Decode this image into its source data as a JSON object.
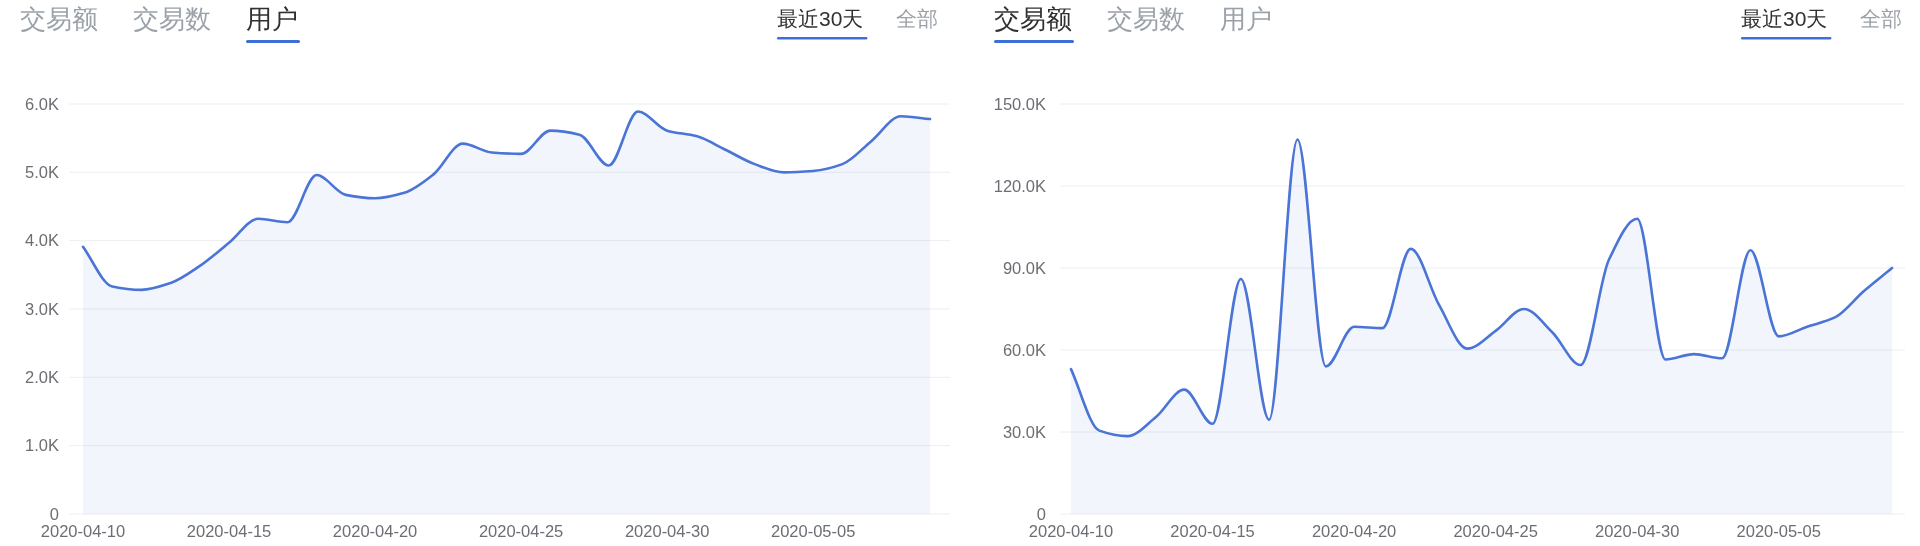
{
  "chart_data": [
    {
      "type": "area",
      "title": "用户",
      "subtitle": "最近30天",
      "annotations": [
        "交易额",
        "交易数",
        "全部"
      ],
      "categories": [
        "2020-04-10",
        null,
        null,
        null,
        null,
        "2020-04-15",
        null,
        null,
        null,
        null,
        "2020-04-20",
        null,
        null,
        null,
        null,
        "2020-04-25",
        null,
        null,
        null,
        null,
        "2020-04-30",
        null,
        null,
        null,
        null,
        "2020-05-05",
        null,
        null,
        null,
        null
      ],
      "series": [
        {
          "color": "#4a74d6",
          "values": [
            3910,
            3330,
            3280,
            3380,
            3630,
            3970,
            4320,
            4270,
            4960,
            4670,
            4620,
            4700,
            4970,
            5420,
            5290,
            5270,
            5610,
            5550,
            5100,
            5890,
            5610,
            5530,
            5330,
            5120,
            5000,
            5020,
            5120,
            5460,
            5820,
            5780
          ]
        }
      ],
      "ylim": [
        0,
        6000
      ],
      "yticks": [
        0,
        {
          "value": 1000,
          "label": "1.0K"
        },
        {
          "value": 2000,
          "label": "2.0K"
        },
        {
          "value": 3000,
          "label": "3.0K"
        },
        {
          "value": 4000,
          "label": "4.0K"
        },
        {
          "value": 5000,
          "label": "5.0K"
        },
        {
          "value": 6000,
          "label": "6.0K"
        }
      ],
      "grid": "y"
    },
    {
      "type": "area",
      "title": "交易额",
      "subtitle": "最近30天",
      "annotations": [
        "交易数",
        "用户",
        "全部"
      ],
      "categories": [
        "2020-04-10",
        null,
        null,
        null,
        null,
        "2020-04-15",
        null,
        null,
        null,
        null,
        "2020-04-20",
        null,
        null,
        null,
        null,
        "2020-04-25",
        null,
        null,
        null,
        null,
        "2020-04-30",
        null,
        null,
        null,
        null,
        "2020-05-05",
        null,
        null,
        null,
        null
      ],
      "series": [
        {
          "color": "#4a74d6",
          "values": [
            53000,
            30500,
            28500,
            35500,
            45500,
            33000,
            86000,
            34500,
            137000,
            54000,
            68500,
            68000,
            97000,
            76500,
            60500,
            67000,
            75000,
            66500,
            54500,
            93000,
            108000,
            56500,
            58500,
            57000,
            96500,
            65000,
            68500,
            72000,
            81500,
            90000
          ]
        }
      ],
      "ylim": [
        0,
        150000
      ],
      "yticks": [
        0,
        {
          "value": 30000,
          "label": "30.0K"
        },
        {
          "value": 60000,
          "label": "60.0K"
        },
        {
          "value": 90000,
          "label": "90.0K"
        },
        {
          "value": 120000,
          "label": "120.0K"
        },
        {
          "value": 150000,
          "label": "150.0K"
        }
      ],
      "grid": "y"
    }
  ]
}
